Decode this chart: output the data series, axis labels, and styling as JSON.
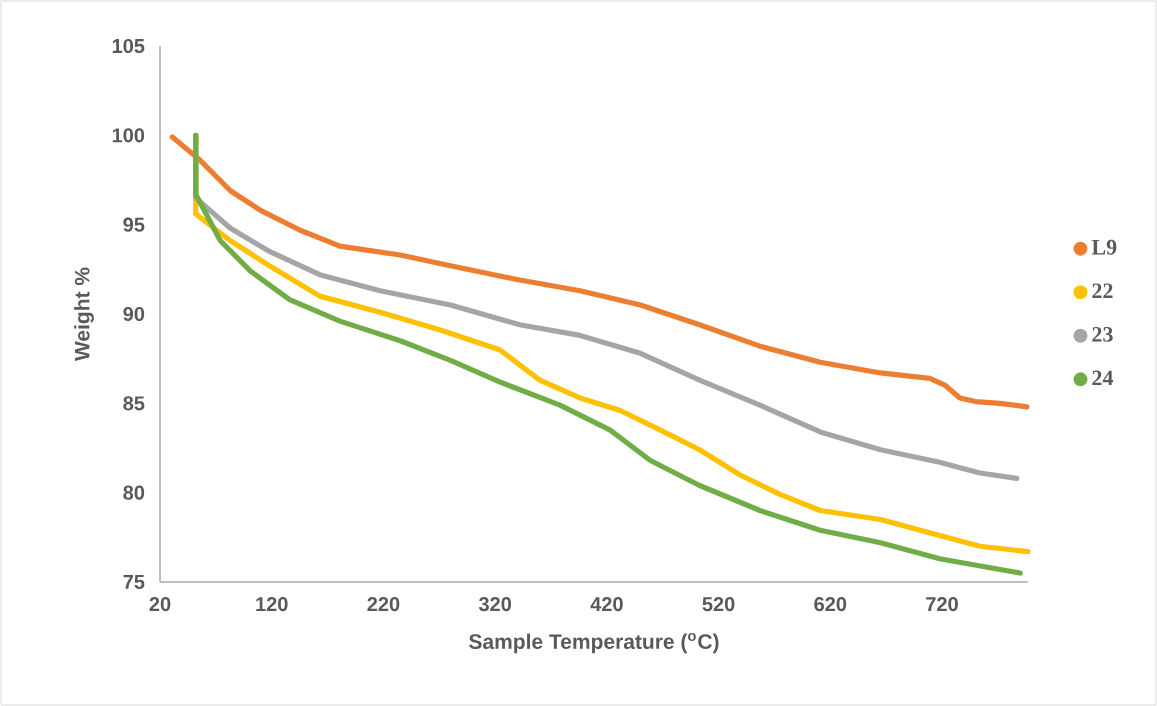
{
  "chart_data": {
    "type": "line",
    "xlabel": "Sample Temperature ($^{o}$C)",
    "ylabel": "Weight %",
    "xlim": [
      20,
      797
    ],
    "ylim": [
      75,
      105
    ],
    "xticks": [
      20,
      120,
      220,
      320,
      420,
      520,
      620,
      720
    ],
    "yticks": [
      75,
      80,
      85,
      90,
      95,
      100,
      105
    ],
    "legend": "right",
    "grid": false,
    "series": [
      {
        "name": "L9",
        "color": "#ed7d31",
        "x": [
          31,
          56,
          83,
          110,
          145,
          181,
          235,
          280,
          342,
          396,
          450,
          503,
          557,
          611,
          665,
          709,
          723,
          736,
          750,
          772,
          796
        ],
        "values": [
          99.9,
          98.6,
          96.9,
          95.8,
          94.7,
          93.8,
          93.3,
          92.7,
          91.9,
          91.3,
          90.5,
          89.4,
          88.2,
          87.3,
          86.7,
          86.4,
          86.0,
          85.3,
          85.1,
          85.0,
          84.8
        ]
      },
      {
        "name": "22",
        "color": "#ffc000",
        "x": [
          52,
          52,
          83,
          118,
          163,
          217,
          271,
          324,
          360,
          396,
          432,
          468,
          503,
          539,
          575,
          611,
          665,
          718,
          754,
          797
        ],
        "values": [
          100,
          95.6,
          94.1,
          92.7,
          91.0,
          90.1,
          89.1,
          88.0,
          86.3,
          85.3,
          84.6,
          83.5,
          82.4,
          81.0,
          79.9,
          79.0,
          78.5,
          77.6,
          77.0,
          76.7
        ]
      },
      {
        "name": "23",
        "color": "#a5a5a5",
        "x": [
          52,
          52,
          83,
          118,
          163,
          217,
          280,
          342,
          396,
          450,
          503,
          557,
          611,
          665,
          718,
          736,
          754,
          787
        ],
        "values": [
          100,
          96.5,
          94.8,
          93.5,
          92.2,
          91.3,
          90.5,
          89.4,
          88.8,
          87.8,
          86.3,
          84.9,
          83.4,
          82.4,
          81.7,
          81.4,
          81.1,
          80.8
        ]
      },
      {
        "name": "24",
        "color": "#70ad47",
        "x": [
          52,
          52,
          74,
          101,
          136,
          181,
          235,
          280,
          324,
          378,
          423,
          459,
          503,
          557,
          611,
          665,
          718,
          772,
          790
        ],
        "values": [
          100,
          96.7,
          94.1,
          92.4,
          90.8,
          89.6,
          88.5,
          87.4,
          86.2,
          84.9,
          83.5,
          81.8,
          80.4,
          79.0,
          77.9,
          77.2,
          76.3,
          75.7,
          75.5
        ]
      }
    ]
  }
}
